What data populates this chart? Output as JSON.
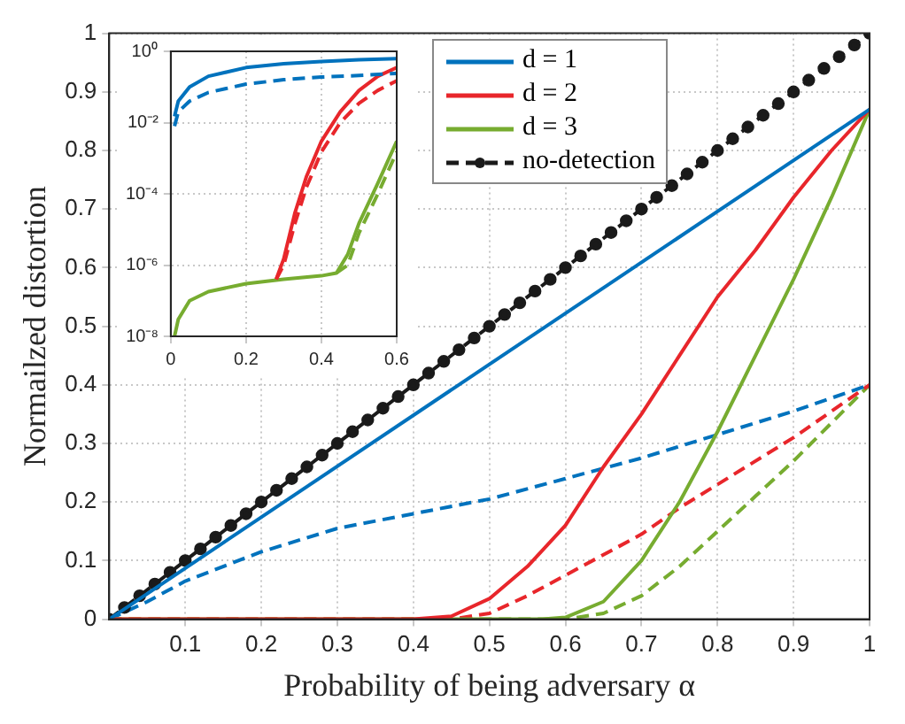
{
  "chart_data": [
    {
      "type": "line",
      "xlabel": "Probability of being adversary α",
      "ylabel": "Normailzed distortion",
      "xlim": [
        0,
        1
      ],
      "xticks": [
        0.1,
        0.2,
        0.3,
        0.4,
        0.5,
        0.6,
        0.7,
        0.8,
        0.9,
        1
      ],
      "ylim": [
        0,
        1
      ],
      "yticks": [
        0,
        0.1,
        0.2,
        0.3,
        0.4,
        0.5,
        0.6,
        0.7,
        0.8,
        0.9,
        1
      ],
      "grid": true,
      "legend": "top",
      "series": [
        {
          "name": "d = 1",
          "color": "#0072bd",
          "line_style": "solid",
          "x": [
            0,
            0.5,
            1
          ],
          "values": [
            0,
            0.435,
            0.87
          ]
        },
        {
          "name": "d = 2",
          "color": "#e8262b",
          "line_style": "solid",
          "x": [
            0,
            0.4,
            0.45,
            0.5,
            0.55,
            0.6,
            0.65,
            0.7,
            0.75,
            0.8,
            0.85,
            0.9,
            0.95,
            1
          ],
          "values": [
            0,
            0,
            0.005,
            0.035,
            0.09,
            0.16,
            0.26,
            0.35,
            0.45,
            0.55,
            0.63,
            0.72,
            0.8,
            0.87
          ]
        },
        {
          "name": "d = 3",
          "color": "#77ac30",
          "line_style": "solid",
          "x": [
            0,
            0.57,
            0.6,
            0.65,
            0.7,
            0.75,
            0.8,
            0.85,
            0.9,
            0.95,
            1
          ],
          "values": [
            0,
            0,
            0.003,
            0.03,
            0.1,
            0.2,
            0.32,
            0.45,
            0.58,
            0.72,
            0.87
          ]
        },
        {
          "name": "no-detection",
          "color": "#1a1a1a",
          "line_style": "dashed",
          "marker": "circle",
          "x": [
            0,
            0.02,
            0.04,
            0.06,
            0.08,
            0.1,
            0.12,
            0.14,
            0.16,
            0.18,
            0.2,
            0.22,
            0.24,
            0.26,
            0.28,
            0.3,
            0.32,
            0.34,
            0.36,
            0.38,
            0.4,
            0.42,
            0.44,
            0.46,
            0.48,
            0.5,
            0.52,
            0.54,
            0.56,
            0.58,
            0.6,
            0.62,
            0.64,
            0.66,
            0.68,
            0.7,
            0.72,
            0.74,
            0.76,
            0.78,
            0.8,
            0.82,
            0.84,
            0.86,
            0.88,
            0.9,
            0.92,
            0.94,
            0.96,
            0.98,
            1
          ],
          "values": [
            0,
            0.02,
            0.04,
            0.06,
            0.08,
            0.1,
            0.12,
            0.14,
            0.16,
            0.18,
            0.2,
            0.22,
            0.24,
            0.26,
            0.28,
            0.3,
            0.32,
            0.34,
            0.36,
            0.38,
            0.4,
            0.42,
            0.44,
            0.46,
            0.48,
            0.5,
            0.52,
            0.54,
            0.56,
            0.58,
            0.6,
            0.62,
            0.64,
            0.66,
            0.68,
            0.7,
            0.72,
            0.74,
            0.76,
            0.78,
            0.8,
            0.82,
            0.84,
            0.86,
            0.88,
            0.9,
            0.92,
            0.94,
            0.96,
            0.98,
            1
          ]
        },
        {
          "color": "#0072bd",
          "line_style": "dashed",
          "x": [
            0,
            0.05,
            0.1,
            0.2,
            0.3,
            0.4,
            0.5,
            0.6,
            0.7,
            0.8,
            0.9,
            1
          ],
          "values": [
            0,
            0.03,
            0.065,
            0.115,
            0.155,
            0.18,
            0.205,
            0.24,
            0.275,
            0.315,
            0.355,
            0.4
          ]
        },
        {
          "color": "#e8262b",
          "line_style": "dashed",
          "x": [
            0,
            0.45,
            0.5,
            0.55,
            0.6,
            0.65,
            0.7,
            0.75,
            0.8,
            0.85,
            0.9,
            0.95,
            1
          ],
          "values": [
            0,
            0,
            0.01,
            0.04,
            0.075,
            0.11,
            0.145,
            0.19,
            0.23,
            0.27,
            0.31,
            0.355,
            0.4
          ]
        },
        {
          "color": "#77ac30",
          "line_style": "dashed",
          "x": [
            0,
            0.6,
            0.65,
            0.7,
            0.75,
            0.8,
            0.85,
            0.9,
            0.95,
            1
          ],
          "values": [
            0,
            0,
            0.01,
            0.04,
            0.09,
            0.15,
            0.21,
            0.27,
            0.335,
            0.4
          ]
        }
      ]
    },
    {
      "type": "line",
      "log": "y",
      "grid": true,
      "xlim": [
        0,
        0.6
      ],
      "xticks": [
        0,
        0.2,
        0.4,
        0.6
      ],
      "ylim": [
        1e-08,
        1
      ],
      "yticks": [
        {
          "value": 1e-08,
          "label": "10⁻⁸"
        },
        {
          "value": 1e-06,
          "label": "10⁻⁶"
        },
        {
          "value": 0.0001,
          "label": "10⁻⁴"
        },
        {
          "value": 0.01,
          "label": "10⁻²"
        },
        {
          "value": 1,
          "label": "10⁰"
        }
      ],
      "series": [
        {
          "color": "#0072bd",
          "line_style": "solid",
          "x": [
            0.01,
            0.02,
            0.05,
            0.1,
            0.2,
            0.3,
            0.4,
            0.5,
            0.6
          ],
          "values": [
            0.015,
            0.04,
            0.1,
            0.2,
            0.35,
            0.45,
            0.52,
            0.58,
            0.62
          ]
        },
        {
          "color": "#0072bd",
          "line_style": "dashed",
          "x": [
            0.01,
            0.02,
            0.05,
            0.1,
            0.2,
            0.3,
            0.4,
            0.5,
            0.6
          ],
          "values": [
            0.008,
            0.02,
            0.04,
            0.07,
            0.12,
            0.16,
            0.19,
            0.21,
            0.24
          ]
        },
        {
          "color": "#e8262b",
          "line_style": "solid",
          "x": [
            0.28,
            0.3,
            0.33,
            0.36,
            0.4,
            0.45,
            0.5,
            0.55,
            0.6
          ],
          "values": [
            4e-07,
            1.5e-06,
            3e-05,
            0.0003,
            0.003,
            0.02,
            0.08,
            0.2,
            0.35
          ]
        },
        {
          "color": "#e8262b",
          "line_style": "dashed",
          "x": [
            0.28,
            0.3,
            0.33,
            0.36,
            0.4,
            0.45,
            0.5,
            0.55,
            0.6
          ],
          "values": [
            4e-07,
            1e-06,
            1.5e-05,
            0.00015,
            0.0015,
            0.01,
            0.035,
            0.08,
            0.15
          ]
        },
        {
          "color": "#77ac30",
          "line_style": "solid",
          "x": [
            0.01,
            0.02,
            0.05,
            0.1,
            0.2,
            0.3,
            0.4,
            0.44,
            0.47,
            0.5,
            0.55,
            0.6
          ],
          "values": [
            1e-08,
            3e-08,
            1e-07,
            1.8e-07,
            3e-07,
            4e-07,
            5e-07,
            6e-07,
            2e-06,
            1.5e-05,
            0.0002,
            0.003
          ]
        },
        {
          "color": "#77ac30",
          "line_style": "dashed",
          "x": [
            0.44,
            0.47,
            0.5,
            0.55,
            0.6
          ],
          "values": [
            6e-07,
            1e-06,
            8e-06,
            0.0001,
            0.0015
          ]
        }
      ]
    }
  ]
}
